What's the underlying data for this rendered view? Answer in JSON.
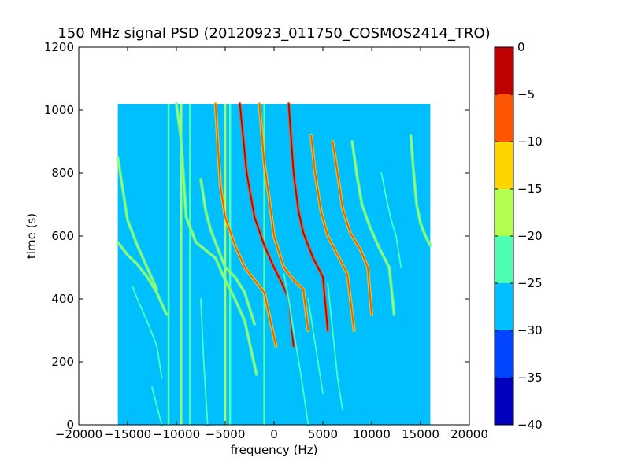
{
  "chart_data": {
    "type": "heatmap",
    "title": "150 MHz signal PSD (20120923_011750_COSMOS2414_TRO)",
    "xlabel": "frequency (Hz)",
    "ylabel": "time (s)",
    "xlim": [
      -20000,
      20000
    ],
    "ylim": [
      0,
      1200
    ],
    "xticks": [
      -20000,
      -15000,
      -10000,
      -5000,
      0,
      5000,
      10000,
      15000,
      20000
    ],
    "xtick_labels": [
      "−20000",
      "−15000",
      "−10000",
      "−5000",
      "0",
      "5000",
      "10000",
      "15000",
      "20000"
    ],
    "yticks": [
      0,
      200,
      400,
      600,
      800,
      1000,
      1200
    ],
    "ytick_labels": [
      "0",
      "200",
      "400",
      "600",
      "800",
      "1000",
      "1200"
    ],
    "data_extent": {
      "x": [
        -16000,
        16000
      ],
      "y": [
        0,
        1020
      ]
    },
    "colorbar": {
      "range": [
        -40,
        0
      ],
      "levels": [
        -40,
        -35,
        -30,
        -25,
        -20,
        -15,
        -10,
        -5,
        0
      ],
      "tick_labels": [
        "−40",
        "−35",
        "−30",
        "−25",
        "−20",
        "−15",
        "−10",
        "−5",
        "0"
      ],
      "colors": [
        "#0000bf",
        "#0044ff",
        "#00bfff",
        "#4dffb3",
        "#b3ff4d",
        "#ffd500",
        "#ff5500",
        "#bf0000"
      ]
    },
    "background_level": -27.5,
    "vertical_lines": [
      {
        "freq": -10800,
        "level": -22.5
      },
      {
        "freq": -9500,
        "level": -17.5
      },
      {
        "freq": -8600,
        "level": -22.5
      },
      {
        "freq": -5000,
        "level": -17.5
      },
      {
        "freq": -4500,
        "level": -22.5
      },
      {
        "freq": -1000,
        "level": -22.5
      }
    ],
    "series": [
      {
        "x": [
          -16000,
          -15000,
          -14000,
          -13000,
          -12000
        ],
        "y": [
          850,
          650,
          570,
          500,
          430
        ],
        "level": -17.5
      },
      {
        "x": [
          -16000,
          -15000,
          -14000,
          -13000,
          -12000,
          -11000
        ],
        "y": [
          580,
          540,
          510,
          470,
          420,
          350
        ],
        "level": -17.5
      },
      {
        "x": [
          -14500,
          -14000,
          -13000,
          -12000,
          -11500
        ],
        "y": [
          440,
          400,
          330,
          250,
          150
        ],
        "level": -22.5
      },
      {
        "x": [
          -10000,
          -9500,
          -9000,
          -8000,
          -6000,
          -5000,
          -4000,
          -3000,
          -1800
        ],
        "y": [
          1020,
          900,
          660,
          580,
          530,
          460,
          400,
          330,
          160
        ],
        "level": -17.5
      },
      {
        "x": [
          -7500,
          -7000,
          -6500,
          -6000,
          -5500,
          -5000,
          -4000,
          -3000,
          -2000
        ],
        "y": [
          780,
          680,
          620,
          580,
          540,
          500,
          470,
          420,
          320
        ],
        "level": -17.5
      },
      {
        "x": [
          -6000,
          -5500,
          -5000,
          -4000,
          -3000,
          -2000,
          -1000,
          200
        ],
        "y": [
          1020,
          760,
          660,
          570,
          500,
          460,
          420,
          250
        ],
        "level": -7.5
      },
      {
        "x": [
          -3500,
          -2800,
          -2000,
          -1000,
          0,
          800,
          1500,
          2000
        ],
        "y": [
          1020,
          800,
          660,
          570,
          500,
          450,
          400,
          250
        ],
        "level": -2.5
      },
      {
        "x": [
          -1500,
          -1000,
          -500,
          0,
          1000,
          2000,
          3000,
          3500
        ],
        "y": [
          1020,
          830,
          720,
          600,
          500,
          460,
          430,
          300
        ],
        "level": -7.5
      },
      {
        "x": [
          1500,
          2000,
          2500,
          3000,
          4000,
          5000,
          5500
        ],
        "y": [
          1020,
          800,
          680,
          610,
          530,
          470,
          300
        ],
        "level": -2.5
      },
      {
        "x": [
          3800,
          4200,
          4800,
          5500,
          6500,
          7500,
          8200
        ],
        "y": [
          920,
          800,
          680,
          600,
          540,
          480,
          300
        ],
        "level": -7.5
      },
      {
        "x": [
          6000,
          6500,
          7000,
          7800,
          8800,
          9600,
          10000
        ],
        "y": [
          900,
          800,
          690,
          610,
          560,
          500,
          350
        ],
        "level": -7.5
      },
      {
        "x": [
          8000,
          8500,
          9000,
          9800,
          10800,
          11800,
          12300
        ],
        "y": [
          900,
          790,
          700,
          630,
          560,
          500,
          350
        ],
        "level": -17.5
      },
      {
        "x": [
          11000,
          11500,
          12000,
          12500,
          13000
        ],
        "y": [
          800,
          720,
          650,
          600,
          500
        ],
        "level": -22.5
      },
      {
        "x": [
          14000,
          14300,
          14600,
          15000,
          15500,
          16000
        ],
        "y": [
          920,
          800,
          700,
          640,
          600,
          570
        ],
        "level": -17.5
      },
      {
        "x": [
          1000,
          1500,
          2000,
          2800,
          3500
        ],
        "y": [
          480,
          400,
          300,
          150,
          0
        ],
        "level": -22.5
      },
      {
        "x": [
          3500,
          4000,
          4500,
          5000
        ],
        "y": [
          400,
          300,
          200,
          100
        ],
        "level": -22.5
      },
      {
        "x": [
          5500,
          6000,
          6500,
          7000
        ],
        "y": [
          450,
          300,
          150,
          50
        ],
        "level": -22.5
      },
      {
        "x": [
          -12500,
          -12000,
          -11500
        ],
        "y": [
          120,
          60,
          0
        ],
        "level": -22.5
      },
      {
        "x": [
          -7500,
          -7200,
          -6800
        ],
        "y": [
          400,
          200,
          0
        ],
        "level": -22.5
      }
    ],
    "grid": false,
    "legend": "none"
  }
}
